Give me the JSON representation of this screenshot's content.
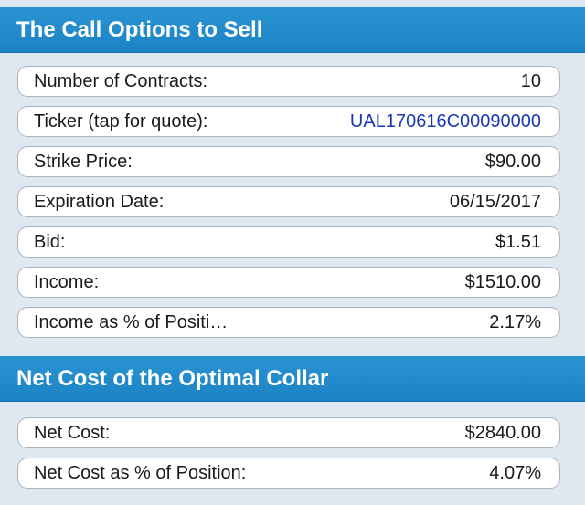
{
  "call_options": {
    "title": "The Call Options to Sell",
    "rows": [
      {
        "label": "Number of Contracts:",
        "value": "10"
      },
      {
        "label": "Ticker (tap for quote):",
        "value": "UAL170616C00090000"
      },
      {
        "label": "Strike Price:",
        "value": "$90.00"
      },
      {
        "label": "Expiration Date:",
        "value": "06/15/2017"
      },
      {
        "label": "Bid:",
        "value": "$1.51"
      },
      {
        "label": "Income:",
        "value": "$1510.00"
      },
      {
        "label": "Income as % of Positi…",
        "value": "2.17%"
      }
    ]
  },
  "net_cost": {
    "title": "Net Cost of the Optimal Collar",
    "rows": [
      {
        "label": "Net Cost:",
        "value": "$2840.00"
      },
      {
        "label": "Net Cost as % of Position:",
        "value": "4.07%"
      }
    ]
  },
  "colors": {
    "header_bg": "#1c84c5",
    "page_bg": "#dfe8f1",
    "link_text": "#1a38b5"
  }
}
